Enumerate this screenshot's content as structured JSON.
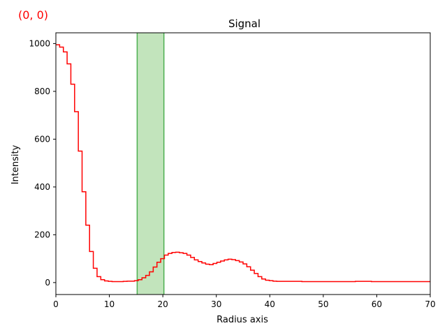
{
  "corner_label": "(0, 0)",
  "colors": {
    "signal": "#ff0000",
    "band_fill": "#a8d8a0",
    "band_edge": "#4caf50",
    "corner_label": "#ff0000"
  },
  "chart_data": {
    "type": "line",
    "style": "step",
    "title": "Signal",
    "xlabel": "Radius axis",
    "ylabel": "Intensity",
    "xlim": [
      0,
      70
    ],
    "ylim": [
      -50,
      1045
    ],
    "xticks": [
      0,
      10,
      20,
      30,
      40,
      50,
      60,
      70
    ],
    "yticks": [
      0,
      200,
      400,
      600,
      800,
      1000
    ],
    "grid": false,
    "band": {
      "x0": 15.2,
      "x1": 20.2
    },
    "series": [
      {
        "x": [
          0,
          0.7,
          1.4,
          2.1,
          2.8,
          3.5,
          4.2,
          4.9,
          5.6,
          6.3,
          7.0,
          7.7,
          8.4,
          9.1,
          9.8,
          10.5,
          11.2,
          11.9,
          12.6,
          13.3,
          14.0,
          14.7,
          15.4,
          16.1,
          16.8,
          17.5,
          18.2,
          18.9,
          19.6,
          20.3,
          21.0,
          21.7,
          22.4,
          23.1,
          23.8,
          24.5,
          25.2,
          25.9,
          26.6,
          27.3,
          28.0,
          28.7,
          29.4,
          30.1,
          30.8,
          31.5,
          32.2,
          32.9,
          33.6,
          34.3,
          35.0,
          35.7,
          36.4,
          37.1,
          37.8,
          38.5,
          39.2,
          39.9,
          40.6,
          41.3,
          42.0,
          46.0,
          56.0,
          59.0,
          70.0
        ],
        "y": [
          995,
          985,
          965,
          915,
          830,
          715,
          550,
          380,
          240,
          130,
          60,
          25,
          12,
          7,
          5,
          4,
          4,
          4,
          5,
          6,
          6,
          8,
          12,
          20,
          30,
          45,
          65,
          85,
          100,
          115,
          122,
          126,
          127,
          125,
          122,
          115,
          105,
          95,
          88,
          82,
          77,
          75,
          80,
          85,
          90,
          95,
          98,
          96,
          92,
          86,
          78,
          66,
          52,
          38,
          25,
          15,
          10,
          8,
          6,
          5,
          5,
          4,
          5,
          4,
          4
        ]
      }
    ]
  }
}
